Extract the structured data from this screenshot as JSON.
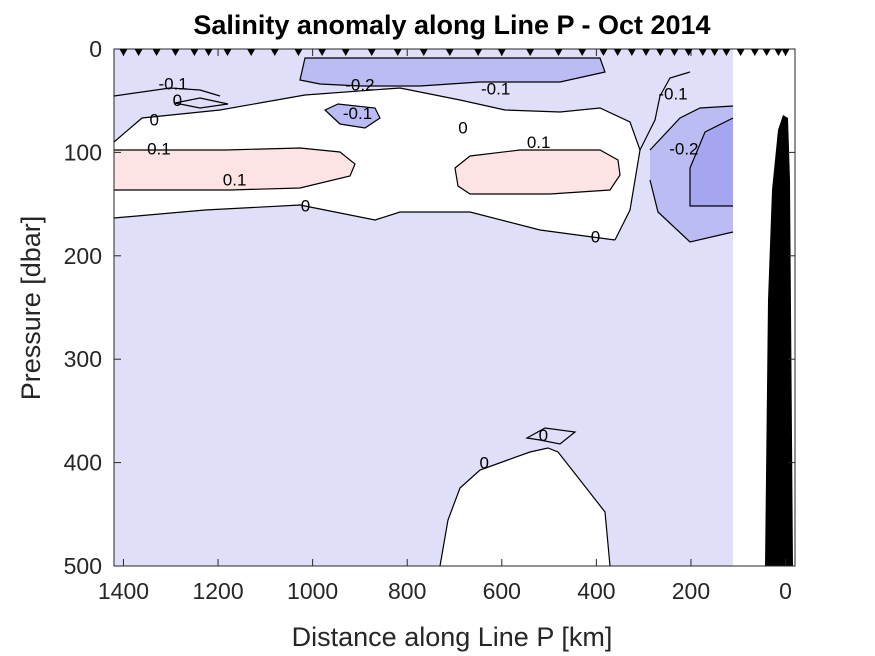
{
  "chart_data": {
    "type": "contour",
    "title": "Salinity anomaly along Line P - Oct 2014",
    "xlabel": "Distance along Line P [km]",
    "ylabel": "Pressure [dbar]",
    "xlim": [
      1420,
      -20
    ],
    "ylim": [
      500,
      0
    ],
    "x_reversed": true,
    "y_reversed": true,
    "x_ticks": [
      1400,
      1200,
      1000,
      800,
      600,
      400,
      200,
      0
    ],
    "y_ticks": [
      0,
      100,
      200,
      300,
      400,
      500
    ],
    "color_scale": {
      "background_anomaly_-0.1_to_0": "#dfdffa",
      "anomaly_0_to_0.1": "#ffffff",
      "anomaly_above_0.1": "#fde3e3",
      "anomaly_-0.2_to_-0.1": "#bcbcf4",
      "anomaly_below_-0.2": "#a6a6f0",
      "bathymetry": "#000000"
    },
    "contour_levels": [
      -0.2,
      -0.1,
      0,
      0.1
    ],
    "stations_km": [
      1400,
      1368,
      1330,
      1290,
      1250,
      1220,
      1180,
      1130,
      1080,
      1030,
      980,
      930,
      875,
      820,
      765,
      710,
      650,
      600,
      540,
      480,
      430,
      385,
      355,
      325,
      295,
      265,
      235,
      205,
      175,
      150,
      125,
      95,
      65,
      40,
      15,
      0
    ],
    "contour_labels": [
      {
        "text": "-0.1",
        "x": 1295,
        "y": 37
      },
      {
        "text": "-0.2",
        "x": 900,
        "y": 38
      },
      {
        "text": "-0.1",
        "x": 613,
        "y": 42
      },
      {
        "text": "0",
        "x": 1286,
        "y": 53
      },
      {
        "text": "-0.1",
        "x": 905,
        "y": 66
      },
      {
        "text": "0",
        "x": 1335,
        "y": 72
      },
      {
        "text": "0",
        "x": 682,
        "y": 80
      },
      {
        "text": "0.1",
        "x": 1325,
        "y": 100
      },
      {
        "text": "0.1",
        "x": 522,
        "y": 94
      },
      {
        "text": "0.1",
        "x": 1165,
        "y": 130
      },
      {
        "text": "0",
        "x": 1015,
        "y": 155
      },
      {
        "text": "0",
        "x": 402,
        "y": 185
      },
      {
        "text": "-0.1",
        "x": 238,
        "y": 47
      },
      {
        "text": "-0.2",
        "x": 215,
        "y": 100
      },
      {
        "text": "0",
        "x": 512,
        "y": 377
      },
      {
        "text": "0",
        "x": 637,
        "y": 404
      }
    ]
  }
}
